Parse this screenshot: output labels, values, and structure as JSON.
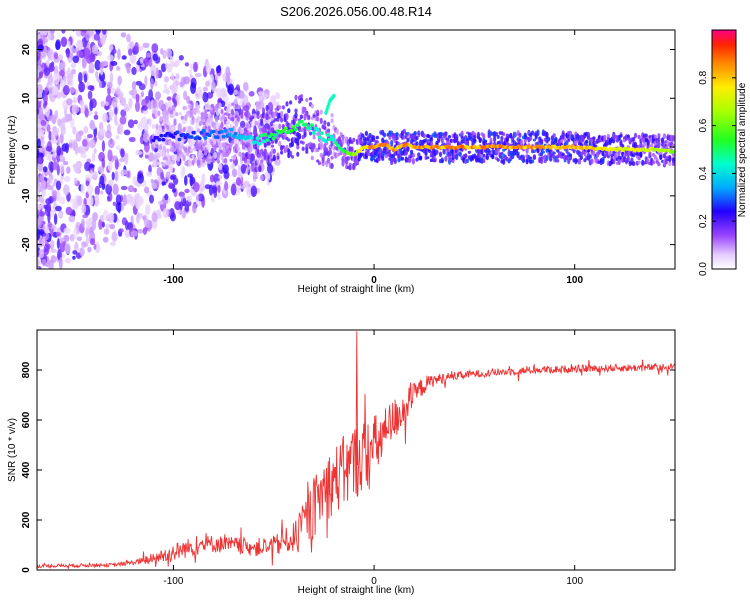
{
  "title": "S206.2026.056.00.48.R14",
  "chart_data": [
    {
      "type": "heatmap",
      "xlabel": "Height of straight line (km)",
      "ylabel": "Frequency (Hz)",
      "xlim": [
        -168,
        150
      ],
      "ylim": [
        -25,
        24
      ],
      "xticks": [
        -100,
        0,
        100
      ],
      "xtick_labels": [
        "-100",
        "0",
        "100"
      ],
      "yticks": [
        -20,
        -10,
        0,
        10,
        20
      ],
      "ytick_labels": [
        "-20",
        "-10",
        "0",
        "10",
        "20"
      ],
      "colorbar": {
        "label": "Normalized spectral amplitude",
        "range": [
          0,
          1
        ],
        "ticks": [
          0.0,
          0.2,
          0.4,
          0.6,
          0.8
        ],
        "tick_labels": [
          "0.0",
          "0.2",
          "0.4",
          "0.6",
          "0.8"
        ]
      },
      "ridge": {
        "x": [
          -110,
          -90,
          -70,
          -60,
          -50,
          -40,
          -35,
          -30,
          -25,
          -20,
          -15,
          -10,
          -5,
          0,
          5,
          10,
          15,
          20,
          40,
          60,
          80,
          100,
          120,
          140,
          150
        ],
        "freq": [
          2.0,
          2.5,
          3.0,
          1.0,
          2.5,
          4.0,
          5.0,
          3.5,
          2.0,
          1.5,
          -1.0,
          -1.5,
          0.0,
          0.0,
          0.5,
          -0.5,
          0.5,
          0.0,
          0.0,
          0.0,
          0.0,
          0.0,
          -0.5,
          -0.5,
          -1.0
        ],
        "amplitude": [
          0.25,
          0.3,
          0.35,
          0.45,
          0.55,
          0.6,
          0.55,
          0.5,
          0.45,
          0.5,
          0.6,
          0.7,
          0.85,
          0.9,
          0.9,
          0.9,
          0.9,
          0.9,
          0.9,
          0.9,
          0.88,
          0.85,
          0.8,
          0.75,
          0.7
        ]
      },
      "spur": {
        "x": [
          -24,
          -22,
          -20
        ],
        "freq": [
          7.0,
          9.5,
          10.5
        ],
        "amplitude": 0.45
      }
    },
    {
      "type": "line",
      "xlabel": "Height of straight line (km)",
      "ylabel": "SNR (10 * v/v)",
      "xlim": [
        -168,
        150
      ],
      "ylim": [
        0,
        960
      ],
      "xticks": [
        -100,
        0,
        100
      ],
      "xtick_labels": [
        "-100",
        "0",
        "100"
      ],
      "yticks": [
        0,
        200,
        400,
        600,
        800
      ],
      "ytick_labels": [
        "0",
        "200",
        "400",
        "600",
        "800"
      ],
      "color": "#ee3333",
      "series": [
        {
          "x": [
            -168,
            -150,
            -130,
            -120,
            -110,
            -100,
            -90,
            -80,
            -70,
            -60,
            -50,
            -40,
            -35,
            -30,
            -25,
            -20,
            -15,
            -10,
            -5,
            0,
            5,
            10,
            15,
            20,
            25,
            30,
            40,
            50,
            60,
            80,
            100,
            120,
            140,
            150
          ],
          "values": [
            15,
            18,
            20,
            30,
            45,
            70,
            95,
            105,
            100,
            90,
            95,
            130,
            180,
            250,
            320,
            360,
            390,
            430,
            460,
            490,
            540,
            600,
            650,
            700,
            740,
            760,
            775,
            785,
            790,
            800,
            805,
            808,
            810,
            812
          ],
          "noise": [
            10,
            12,
            12,
            15,
            40,
            60,
            65,
            60,
            55,
            60,
            70,
            100,
            150,
            200,
            220,
            230,
            250,
            260,
            240,
            220,
            180,
            150,
            120,
            80,
            60,
            40,
            30,
            25,
            25,
            25,
            25,
            25,
            25,
            25
          ]
        }
      ]
    }
  ]
}
